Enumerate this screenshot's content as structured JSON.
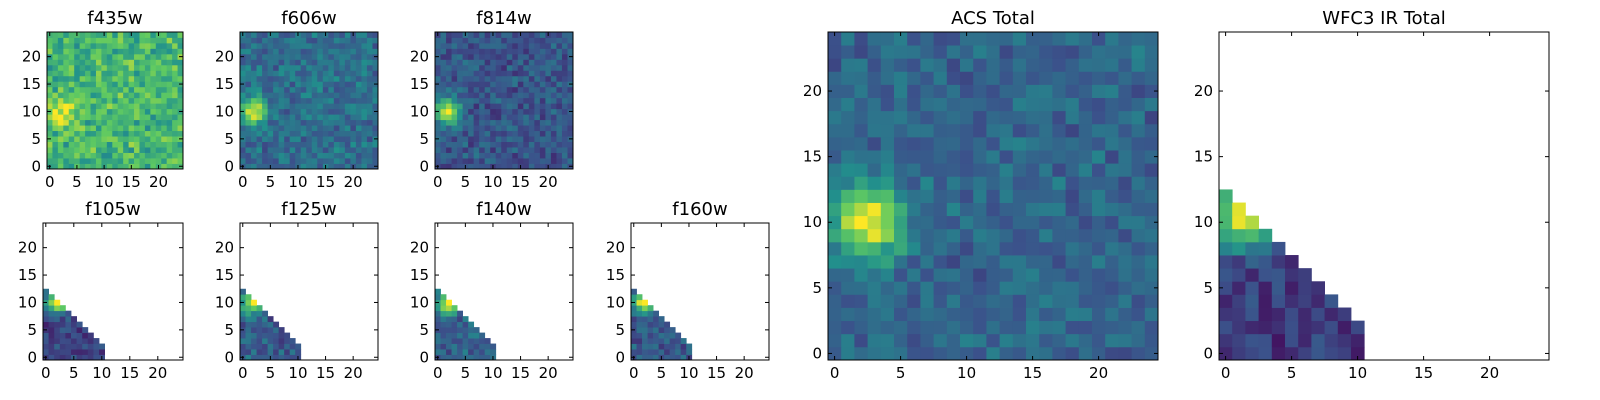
{
  "colors": {
    "background": "#ffffff",
    "axis": "#000000",
    "colormap": "viridis",
    "viridis_stops": [
      "#440154",
      "#3b528b",
      "#21918c",
      "#5ec962",
      "#fde725"
    ]
  },
  "chart_data": [
    {
      "id": "f435w",
      "type": "heatmap",
      "title": "f435w",
      "xlim": [
        -0.5,
        24.5
      ],
      "ylim": [
        -0.5,
        24.5
      ],
      "xticks": [
        0,
        5,
        10,
        15,
        20
      ],
      "yticks": [
        0,
        5,
        10,
        15,
        20
      ],
      "grid": false,
      "origin": "lower",
      "coverage": "full",
      "source": {
        "x": 2,
        "y": 10,
        "radius": 1.8,
        "peak": 0.93
      },
      "background_level": 0.66,
      "noise": 0.16,
      "seed": 11
    },
    {
      "id": "f606w",
      "type": "heatmap",
      "title": "f606w",
      "xlim": [
        -0.5,
        24.5
      ],
      "ylim": [
        -0.5,
        24.5
      ],
      "xticks": [
        0,
        5,
        10,
        15,
        20
      ],
      "yticks": [
        0,
        5,
        10,
        15,
        20
      ],
      "grid": false,
      "origin": "lower",
      "coverage": "full",
      "source": {
        "x": 2,
        "y": 10,
        "radius": 1.6,
        "peak": 1.0
      },
      "background_level": 0.36,
      "noise": 0.12,
      "seed": 23
    },
    {
      "id": "f814w",
      "type": "heatmap",
      "title": "f814w",
      "xlim": [
        -0.5,
        24.5
      ],
      "ylim": [
        -0.5,
        24.5
      ],
      "xticks": [
        0,
        5,
        10,
        15,
        20
      ],
      "yticks": [
        0,
        5,
        10,
        15,
        20
      ],
      "grid": false,
      "origin": "lower",
      "coverage": "full",
      "source": {
        "x": 2,
        "y": 10,
        "radius": 1.6,
        "peak": 1.0
      },
      "background_level": 0.27,
      "noise": 0.11,
      "seed": 37
    },
    {
      "id": "f105w",
      "type": "heatmap",
      "title": "f105w",
      "xlim": [
        -0.5,
        24.5
      ],
      "ylim": [
        -0.5,
        24.5
      ],
      "xticks": [
        0,
        5,
        10,
        15,
        20
      ],
      "yticks": [
        0,
        5,
        10,
        15,
        20
      ],
      "grid": false,
      "origin": "lower",
      "coverage": "lower-left triangle",
      "triangle": {
        "x_plus_y_max": 12,
        "x_max": 10,
        "y_max": 12
      },
      "source": {
        "x": 2,
        "y": 10,
        "radius": 1.4,
        "peak": 1.0
      },
      "background_level": 0.2,
      "noise": 0.1,
      "seed": 51
    },
    {
      "id": "f125w",
      "type": "heatmap",
      "title": "f125w",
      "xlim": [
        -0.5,
        24.5
      ],
      "ylim": [
        -0.5,
        24.5
      ],
      "xticks": [
        0,
        5,
        10,
        15,
        20
      ],
      "yticks": [
        0,
        5,
        10,
        15,
        20
      ],
      "grid": false,
      "origin": "lower",
      "coverage": "lower-left triangle",
      "triangle": {
        "x_plus_y_max": 12,
        "x_max": 10,
        "y_max": 12
      },
      "source": {
        "x": 2,
        "y": 10,
        "radius": 1.4,
        "peak": 1.0
      },
      "background_level": 0.3,
      "noise": 0.12,
      "seed": 63
    },
    {
      "id": "f140w",
      "type": "heatmap",
      "title": "f140w",
      "xlim": [
        -0.5,
        24.5
      ],
      "ylim": [
        -0.5,
        24.5
      ],
      "xticks": [
        0,
        5,
        10,
        15,
        20
      ],
      "yticks": [
        0,
        5,
        10,
        15,
        20
      ],
      "grid": false,
      "origin": "lower",
      "coverage": "lower-left triangle",
      "triangle": {
        "x_plus_y_max": 12,
        "x_max": 10,
        "y_max": 12
      },
      "source": {
        "x": 2,
        "y": 10,
        "radius": 1.4,
        "peak": 1.0
      },
      "background_level": 0.3,
      "noise": 0.12,
      "seed": 77
    },
    {
      "id": "f160w",
      "type": "heatmap",
      "title": "f160w",
      "xlim": [
        -0.5,
        24.5
      ],
      "ylim": [
        -0.5,
        24.5
      ],
      "xticks": [
        0,
        5,
        10,
        15,
        20
      ],
      "yticks": [
        0,
        5,
        10,
        15,
        20
      ],
      "grid": false,
      "origin": "lower",
      "coverage": "lower-left triangle",
      "triangle": {
        "x_plus_y_max": 12,
        "x_max": 10,
        "y_max": 12
      },
      "source": {
        "x": 2,
        "y": 10,
        "radius": 1.4,
        "peak": 1.0
      },
      "background_level": 0.28,
      "noise": 0.11,
      "seed": 89
    },
    {
      "id": "acs-total",
      "type": "heatmap",
      "title": "ACS Total",
      "xlim": [
        -0.5,
        24.5
      ],
      "ylim": [
        -0.5,
        24.5
      ],
      "xticks": [
        0,
        5,
        10,
        15,
        20
      ],
      "yticks": [
        0,
        5,
        10,
        15,
        20
      ],
      "grid": false,
      "origin": "lower",
      "coverage": "full",
      "source": {
        "x": 2.5,
        "y": 10,
        "radius": 1.9,
        "peak": 1.0
      },
      "background_level": 0.33,
      "noise": 0.1,
      "seed": 101
    },
    {
      "id": "wfc3-ir-total",
      "type": "heatmap",
      "title": "WFC3 IR Total",
      "xlim": [
        -0.5,
        24.5
      ],
      "ylim": [
        -0.5,
        24.5
      ],
      "xticks": [
        0,
        5,
        10,
        15,
        20
      ],
      "yticks": [
        0,
        5,
        10,
        15,
        20
      ],
      "grid": false,
      "origin": "lower",
      "coverage": "lower-left triangle",
      "triangle": {
        "x_plus_y_max": 12,
        "x_max": 10,
        "y_max": 12
      },
      "source": {
        "x": 1.5,
        "y": 10.5,
        "radius": 1.6,
        "peak": 1.0
      },
      "background_level": 0.18,
      "noise": 0.1,
      "seed": 131
    }
  ]
}
